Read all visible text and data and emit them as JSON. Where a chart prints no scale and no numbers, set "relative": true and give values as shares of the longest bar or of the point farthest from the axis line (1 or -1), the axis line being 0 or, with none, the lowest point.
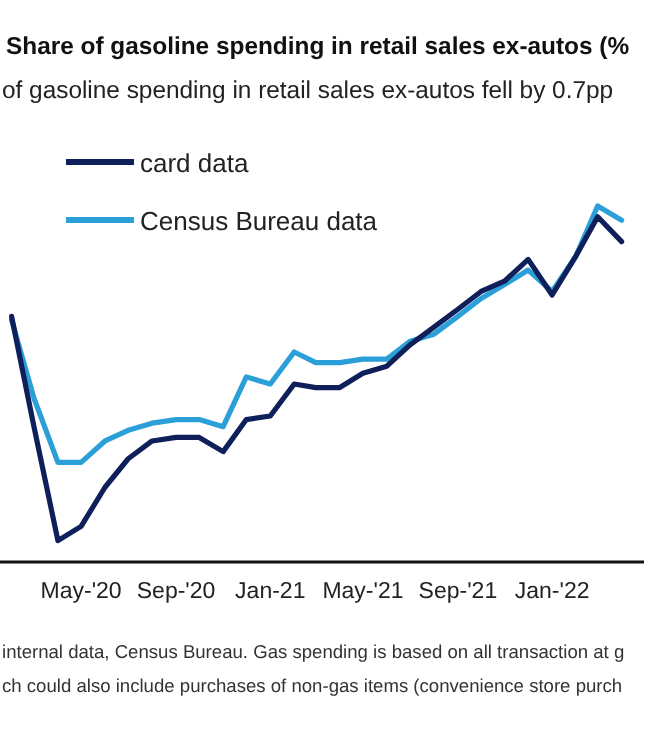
{
  "chart_data": {
    "type": "line",
    "title": "Share of gasoline spending in retail sales ex-autos (%",
    "subtitle": "of gasoline spending in retail sales ex-autos fell by 0.7pp",
    "annotations": [
      "internal data, Census Bureau. Gas spending is based on all transaction at g",
      "ch could also include purchases of non-gas items (convenience store purch"
    ],
    "x": [
      "2020-02",
      "2020-03",
      "2020-04",
      "2020-05",
      "2020-06",
      "2020-07",
      "2020-08",
      "2020-09",
      "2020-10",
      "2020-11",
      "2020-12",
      "2021-01",
      "2021-02",
      "2021-03",
      "2021-04",
      "2021-05",
      "2021-06",
      "2021-07",
      "2021-08",
      "2021-09",
      "2021-10",
      "2021-11",
      "2021-12",
      "2022-01",
      "2022-02",
      "2022-03",
      "2022-04"
    ],
    "xlim": [
      "2020-01-17",
      "2022-04-30"
    ],
    "xticks": [
      {
        "value": "2020-05",
        "label": "May-'20"
      },
      {
        "value": "2020-09",
        "label": "Sep-'20"
      },
      {
        "value": "2021-01",
        "label": "Jan-21"
      },
      {
        "value": "2021-05",
        "label": "May-'21"
      },
      {
        "value": "2021-09",
        "label": "Sep-'21"
      },
      {
        "value": "2022-01",
        "label": "Jan-'22"
      }
    ],
    "relative": true,
    "legend": "top left",
    "marker": "none",
    "line_style": "solid",
    "series": [
      {
        "name": "card data",
        "color": "#0f1f5a",
        "values": [
          0.69,
          0.38,
          0.06,
          0.1,
          0.21,
          0.29,
          0.34,
          0.35,
          0.35,
          0.31,
          0.4,
          0.41,
          0.5,
          0.49,
          0.49,
          0.53,
          0.55,
          0.61,
          0.66,
          0.71,
          0.76,
          0.79,
          0.85,
          0.75,
          0.86,
          0.97,
          0.9
        ]
      },
      {
        "name": "Census Bureau data",
        "color": "#2b9fd8",
        "values": [
          0.68,
          0.46,
          0.28,
          0.28,
          0.34,
          0.37,
          0.39,
          0.4,
          0.4,
          0.38,
          0.52,
          0.5,
          0.59,
          0.56,
          0.56,
          0.57,
          0.57,
          0.62,
          0.64,
          0.69,
          0.74,
          0.78,
          0.82,
          0.76,
          0.86,
          1,
          0.96
        ]
      }
    ]
  }
}
